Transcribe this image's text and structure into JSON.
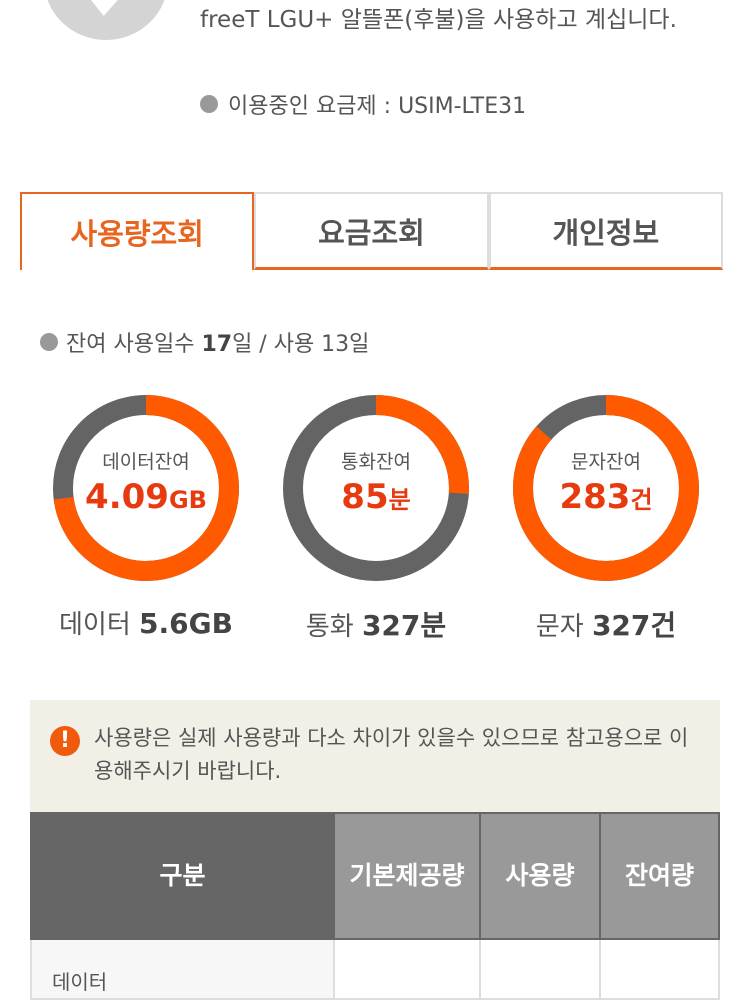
{
  "profile": {
    "message": "freeT LGU+ 알뜰폰(후불)을 사용하고 계십니다.",
    "plan_label": "이용중인 요금제 : USIM-LTE31"
  },
  "tabs": [
    {
      "label": "사용량조회",
      "active": true
    },
    {
      "label": "요금조회",
      "active": false
    },
    {
      "label": "개인정보",
      "active": false
    }
  ],
  "days": {
    "prefix": "잔여 사용일수 ",
    "remaining": "17",
    "mid": "일 / 사용 13일"
  },
  "colors": {
    "accent": "#ff5a00",
    "gray": "#646464",
    "value_red": "#e83a0f"
  },
  "usage": [
    {
      "label": "데이터잔여",
      "value": "4.09",
      "unit": "GB",
      "total_label": "데이터 ",
      "total": "5.6GB",
      "remaining_fraction": 0.73
    },
    {
      "label": "통화잔여",
      "value": "85",
      "unit": "분",
      "total_label": "통화 ",
      "total": "327분",
      "remaining_fraction": 0.26
    },
    {
      "label": "문자잔여",
      "value": "283",
      "unit": "건",
      "total_label": "문자 ",
      "total": "327건",
      "remaining_fraction": 0.865
    }
  ],
  "notice": {
    "text": "사용량은 실제 사용량과 다소 차이가 있을수 있으므로 참고용으로 이용해주시기 바랍니다."
  },
  "table": {
    "headers": [
      "구분",
      "기본제공량",
      "사용량",
      "잔여량"
    ],
    "rows": [
      {
        "category": "데이터"
      }
    ]
  }
}
